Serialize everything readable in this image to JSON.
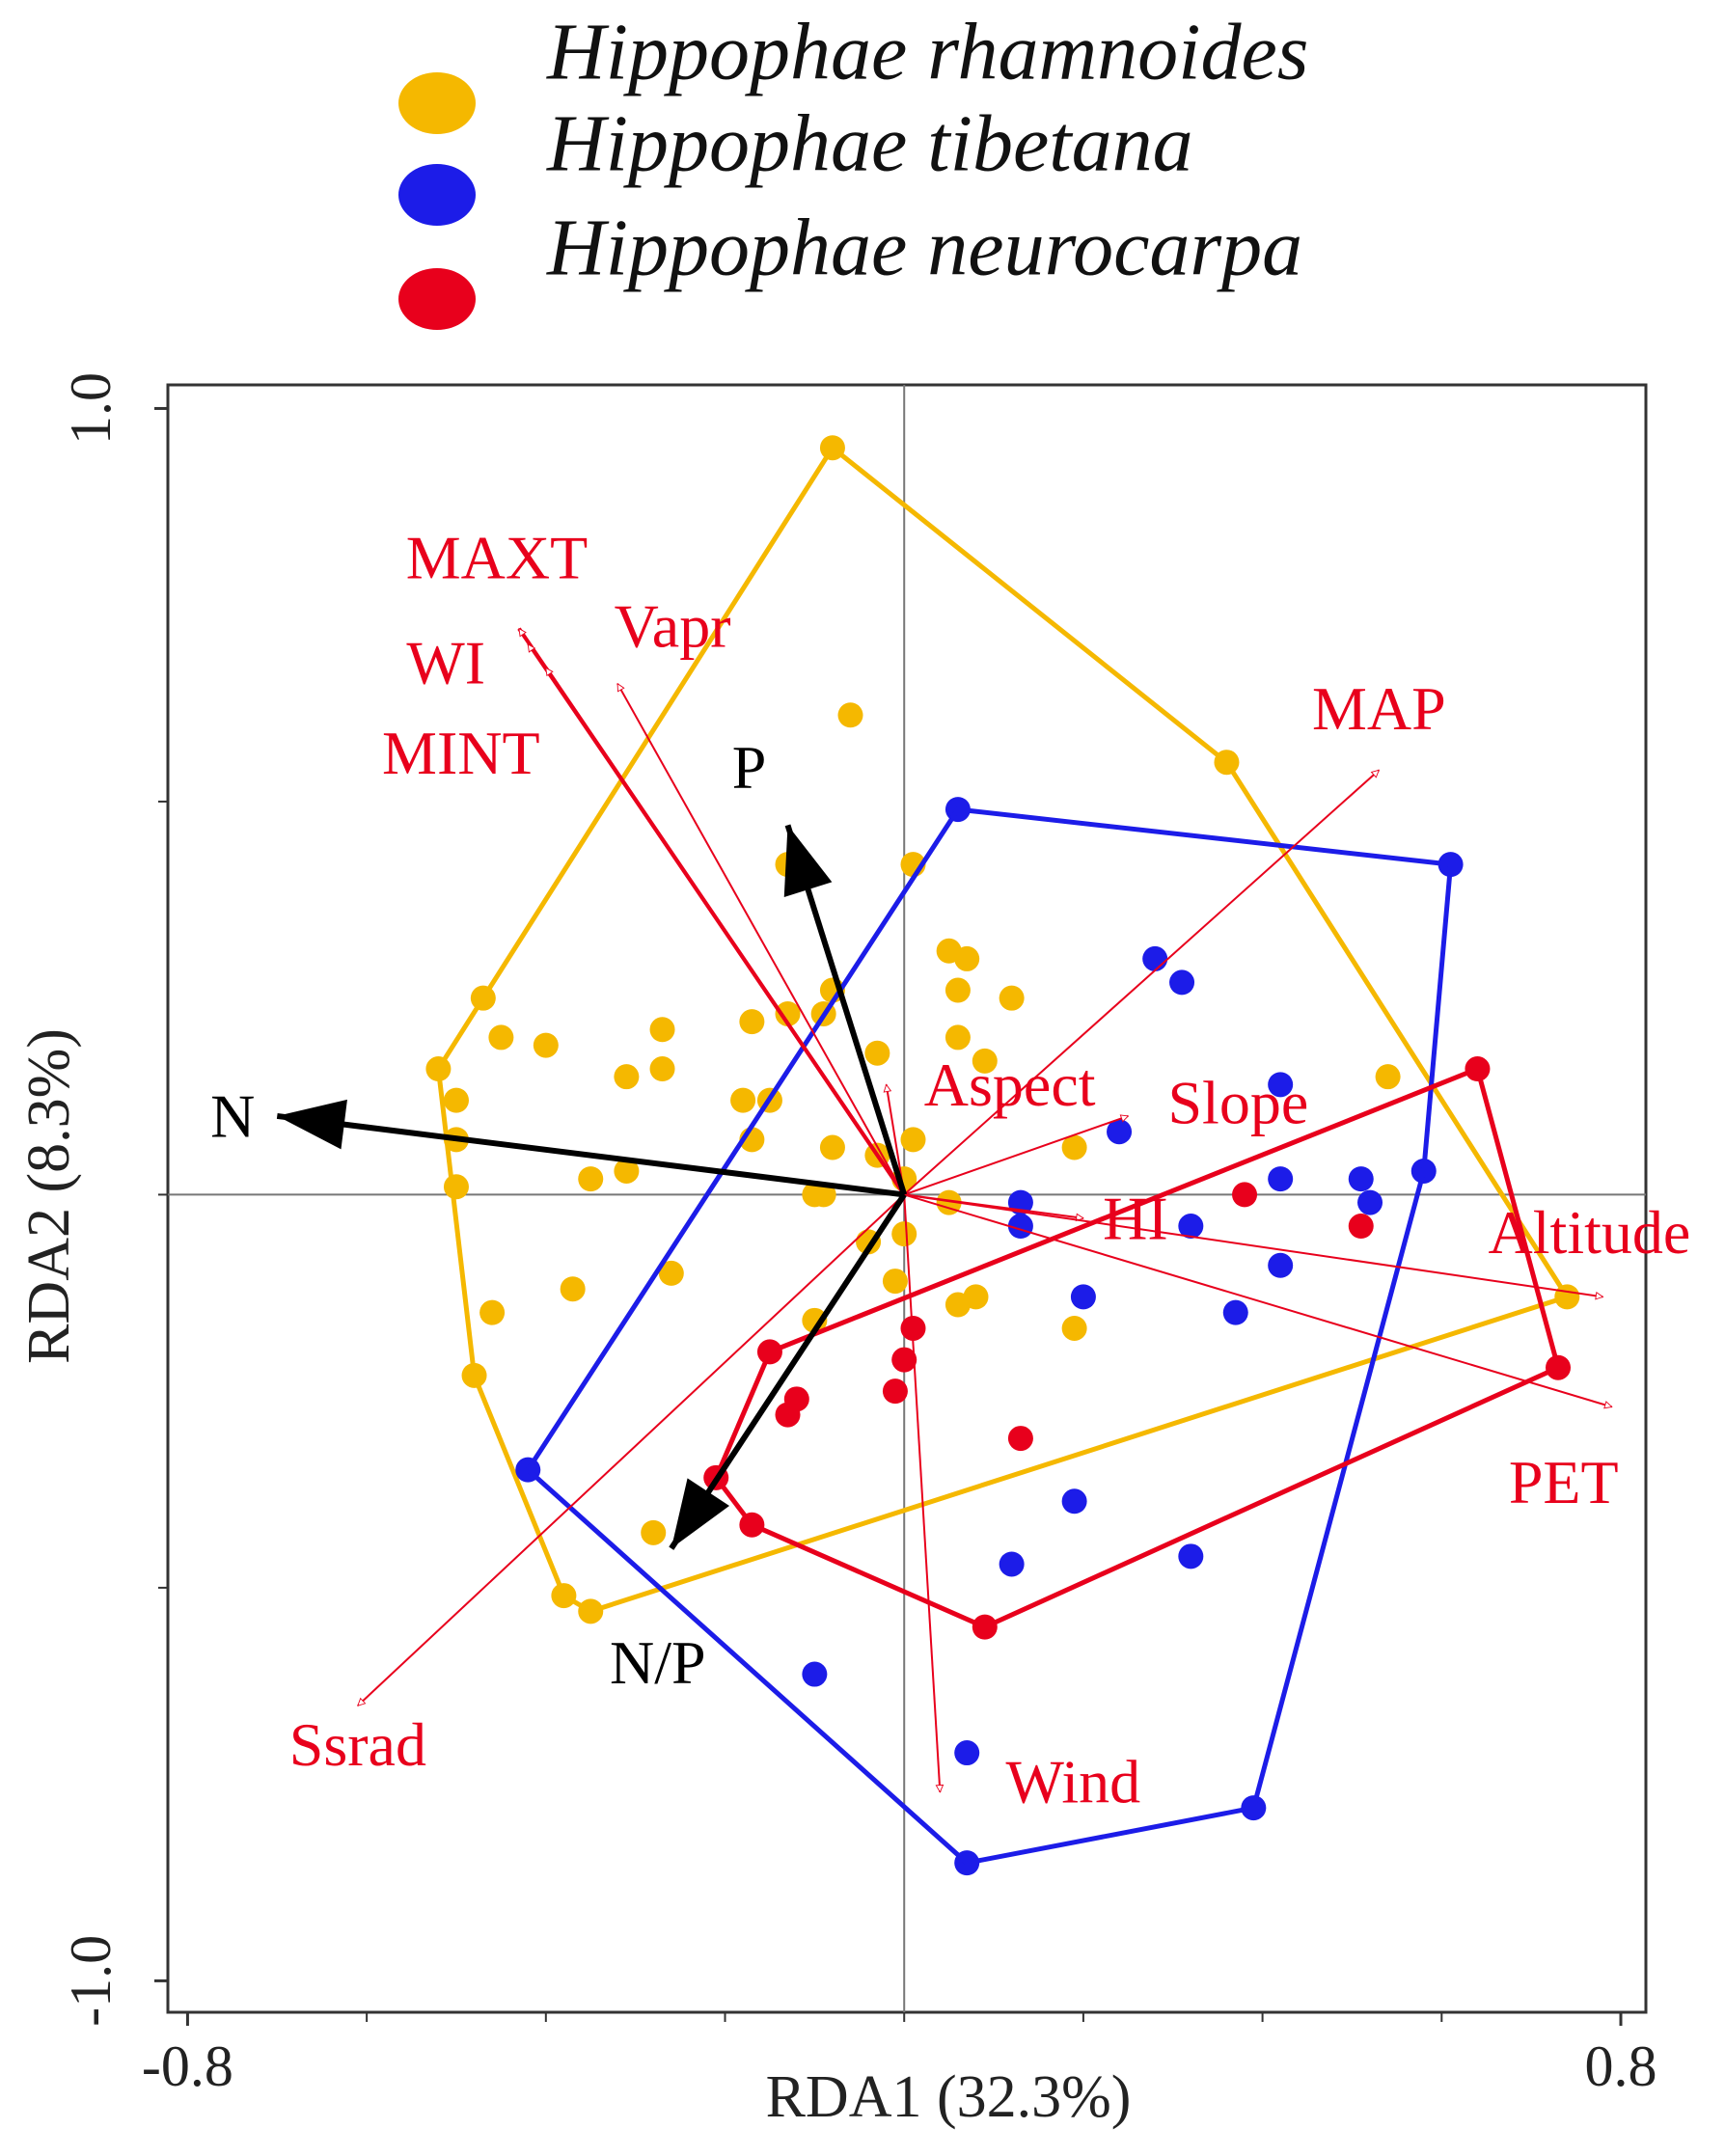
{
  "chart_data": {
    "type": "scatter",
    "xlabel": "RDA1 (32.3%)",
    "ylabel": "RDA2 (8.3%)",
    "xlim": [
      -0.822,
      0.828
    ],
    "ylim": [
      -1.04,
      1.03
    ],
    "xticks": [
      -0.8,
      0.8
    ],
    "yticks": [
      {
        "value": 1,
        "label": "1.0"
      },
      {
        "value": -1,
        "label": "-1.0"
      }
    ],
    "xminorticks": [
      -0.6,
      -0.4,
      -0.2,
      0,
      0.2,
      0.4,
      0.6
    ],
    "yminorticks": [
      0.5,
      0,
      -0.5
    ],
    "zero_lines": true,
    "hulls": true,
    "series": [
      {
        "name": "Hippophae rhamnoides",
        "color": "#f5b800",
        "x": [
          -0.08,
          -0.06,
          0.36,
          -0.13,
          0.01,
          0.05,
          0.07,
          -0.08,
          0.06,
          0.12,
          -0.47,
          -0.45,
          -0.4,
          -0.27,
          -0.17,
          -0.13,
          -0.09,
          0.06,
          -0.03,
          0.09,
          -0.52,
          -0.31,
          -0.27,
          -0.5,
          -0.18,
          -0.15,
          0.54,
          -0.5,
          -0.17,
          -0.08,
          0.01,
          -0.03,
          0.19,
          -0.35,
          -0.31,
          0.0,
          -0.5,
          -0.1,
          -0.09,
          0.05,
          -0.04,
          0.0,
          -0.26,
          -0.37,
          -0.01,
          0.06,
          0.08,
          -0.46,
          -0.1,
          0.19,
          -0.48,
          -0.28,
          -0.38,
          -0.35,
          0.74
        ],
        "y": [
          0.95,
          0.61,
          0.55,
          0.42,
          0.42,
          0.31,
          0.3,
          0.26,
          0.26,
          0.25,
          0.25,
          0.2,
          0.19,
          0.21,
          0.22,
          0.23,
          0.23,
          0.2,
          0.18,
          0.17,
          0.16,
          0.15,
          0.16,
          0.12,
          0.12,
          0.12,
          0.15,
          0.07,
          0.07,
          0.06,
          0.07,
          0.05,
          0.06,
          0.02,
          0.03,
          0.02,
          0.01,
          0.0,
          0.0,
          -0.01,
          -0.06,
          -0.05,
          -0.1,
          -0.12,
          -0.11,
          -0.14,
          -0.13,
          -0.15,
          -0.16,
          -0.17,
          -0.23,
          -0.43,
          -0.51,
          -0.53,
          -0.13
        ]
      },
      {
        "name": "Hippophae tibetana",
        "color": "#1c1ce8",
        "x": [
          0.06,
          0.61,
          0.28,
          0.31,
          0.24,
          0.42,
          0.42,
          0.51,
          0.52,
          0.58,
          0.13,
          0.13,
          0.32,
          0.42,
          0.2,
          0.37,
          0.19,
          0.12,
          0.32,
          -0.42,
          -0.1,
          0.07,
          0.07,
          0.39
        ],
        "y": [
          0.49,
          0.42,
          0.3,
          0.27,
          0.08,
          0.14,
          0.02,
          0.02,
          -0.01,
          0.03,
          -0.01,
          -0.04,
          -0.04,
          -0.09,
          -0.13,
          -0.15,
          -0.39,
          -0.47,
          -0.46,
          -0.35,
          -0.61,
          -0.71,
          -0.85,
          -0.78
        ]
      },
      {
        "name": "Hippophae neurocarpa",
        "color": "#e8001c",
        "x": [
          0.64,
          0.38,
          0.51,
          0.73,
          0.01,
          0.0,
          -0.01,
          -0.15,
          -0.12,
          -0.13,
          0.13,
          -0.21,
          -0.17,
          0.09
        ],
        "y": [
          0.16,
          0.0,
          -0.04,
          -0.22,
          -0.17,
          -0.21,
          -0.25,
          -0.2,
          -0.26,
          -0.28,
          -0.31,
          -0.36,
          -0.42,
          -0.55
        ]
      }
    ],
    "vectors": [
      {
        "name": "MAXT",
        "x": -0.43,
        "y": 0.72,
        "color": "#e8001c"
      },
      {
        "name": "WI",
        "x": -0.42,
        "y": 0.7,
        "color": "#e8001c"
      },
      {
        "name": "MINT",
        "x": -0.4,
        "y": 0.67,
        "color": "#e8001c"
      },
      {
        "name": "Vapr",
        "x": -0.32,
        "y": 0.65,
        "color": "#e8001c"
      },
      {
        "name": "MAP",
        "x": 0.53,
        "y": 0.54,
        "color": "#e8001c"
      },
      {
        "name": "Aspect",
        "x": -0.02,
        "y": 0.14,
        "color": "#e8001c"
      },
      {
        "name": "Slope",
        "x": 0.25,
        "y": 0.1,
        "color": "#e8001c"
      },
      {
        "name": "HI",
        "x": 0.2,
        "y": -0.03,
        "color": "#e8001c"
      },
      {
        "name": "Altitude",
        "x": 0.78,
        "y": -0.13,
        "color": "#e8001c"
      },
      {
        "name": "PET",
        "x": 0.79,
        "y": -0.27,
        "color": "#e8001c"
      },
      {
        "name": "Wind",
        "x": 0.04,
        "y": -0.76,
        "color": "#e8001c"
      },
      {
        "name": "Ssrad",
        "x": -0.61,
        "y": -0.65,
        "color": "#e8001c"
      },
      {
        "name": "P",
        "x": -0.13,
        "y": 0.47,
        "color": "#000000"
      },
      {
        "name": "N",
        "x": -0.7,
        "y": 0.1,
        "color": "#000000"
      },
      {
        "name": "N/P",
        "x": -0.26,
        "y": -0.45,
        "color": "#000000"
      }
    ]
  }
}
